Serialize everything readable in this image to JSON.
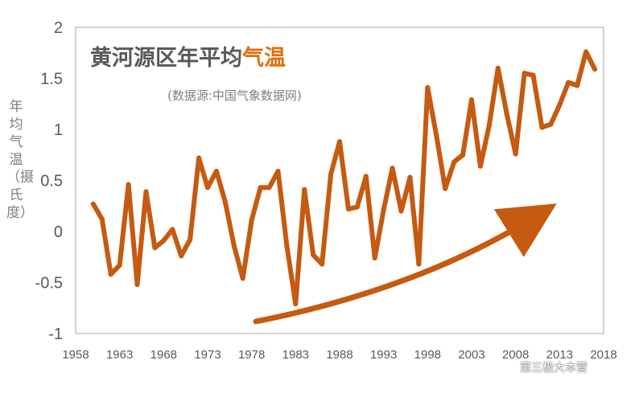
{
  "chart_data": {
    "type": "line",
    "title": "黄河源区年平均",
    "title_highlight": "气温",
    "subtitle": "(数据源:中国气象数据网)",
    "ylabel": "年均气温（摄氏度）",
    "ylim": [
      -1,
      2
    ],
    "xlim": [
      1958,
      2018
    ],
    "yticks": [
      "2",
      "1.5",
      "1",
      "0.5",
      "0",
      "-0.5",
      "-1"
    ],
    "xticks": [
      "1958",
      "1963",
      "1968",
      "1973",
      "1978",
      "1983",
      "1988",
      "1993",
      "1998",
      "2003",
      "2008",
      "2013",
      "2018"
    ],
    "grid": false,
    "colors": {
      "line": "#c55a11",
      "title": "#595959",
      "highlight": "#e46c0a",
      "plot_border": "#a6a6a6"
    },
    "annotation": "upward-trend-arrow",
    "x": [
      1960,
      1961,
      1962,
      1963,
      1964,
      1965,
      1966,
      1967,
      1968,
      1969,
      1970,
      1971,
      1972,
      1973,
      1974,
      1975,
      1976,
      1977,
      1978,
      1979,
      1980,
      1981,
      1982,
      1983,
      1984,
      1985,
      1986,
      1987,
      1988,
      1989,
      1990,
      1991,
      1992,
      1993,
      1994,
      1995,
      1996,
      1997,
      1998,
      1999,
      2000,
      2001,
      2002,
      2003,
      2004,
      2005,
      2006,
      2007,
      2008,
      2009,
      2010,
      2011,
      2012,
      2013,
      2014,
      2015,
      2016,
      2017
    ],
    "series": [
      {
        "values": [
          0.27,
          0.12,
          -0.42,
          -0.33,
          0.46,
          -0.52,
          0.39,
          -0.16,
          -0.09,
          0.02,
          -0.24,
          -0.08,
          0.72,
          0.43,
          0.59,
          0.29,
          -0.14,
          -0.46,
          0.11,
          0.43,
          0.43,
          0.59,
          -0.14,
          -0.71,
          0.41,
          -0.23,
          -0.32,
          0.56,
          0.88,
          0.22,
          0.24,
          0.54,
          -0.26,
          0.21,
          0.62,
          0.2,
          0.53,
          -0.32,
          1.41,
          0.94,
          0.42,
          0.68,
          0.75,
          1.29,
          0.64,
          1.04,
          1.6,
          1.15,
          0.76,
          1.55,
          1.53,
          1.02,
          1.05,
          1.24,
          1.46,
          1.43,
          1.76,
          1.59
        ]
      }
    ]
  },
  "watermark": {
    "text": "第三极大本营",
    "icon": "wechat-icon"
  }
}
